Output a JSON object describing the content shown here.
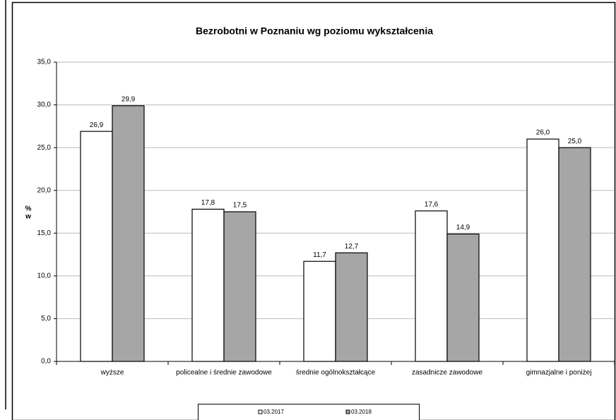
{
  "chart_data": {
    "type": "bar",
    "title": "Bezrobotni w Poznaniu wg poziomu wykształcenia",
    "ylabel": [
      "%",
      "w"
    ],
    "categories": [
      "wyższe",
      "policealne i średnie zawodowe",
      "średnie ogólnokształcące",
      "zasadnicze zawodowe",
      "gimnazjalne i poniżej"
    ],
    "series": [
      {
        "name": "03.2017",
        "color": "#ffffff",
        "values": [
          26.9,
          17.8,
          11.7,
          17.6,
          26.0
        ],
        "value_labels": [
          "26,9",
          "17,8",
          "11,7",
          "17,6",
          "26,0"
        ]
      },
      {
        "name": "03.2018",
        "color": "#a6a6a6",
        "values": [
          29.9,
          17.5,
          12.7,
          14.9,
          25.0
        ],
        "value_labels": [
          "29,9",
          "17,5",
          "12,7",
          "14,9",
          "25,0"
        ]
      }
    ],
    "ylim": [
      0,
      35
    ],
    "yticks": [
      {
        "value": 0,
        "label": "0,0"
      },
      {
        "value": 5,
        "label": "5,0"
      },
      {
        "value": 10,
        "label": "10,0"
      },
      {
        "value": 15,
        "label": "15,0"
      },
      {
        "value": 20,
        "label": "20,0"
      },
      {
        "value": 25,
        "label": "25,0"
      },
      {
        "value": 30,
        "label": "30,0"
      },
      {
        "value": 35,
        "label": "35,0"
      }
    ],
    "grid": true,
    "legend": "bottom"
  }
}
